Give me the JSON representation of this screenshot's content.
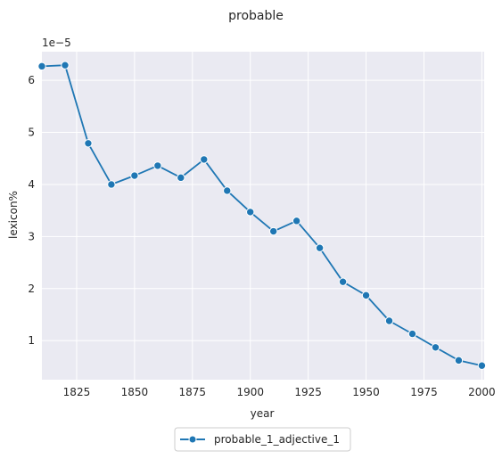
{
  "chart_data": {
    "type": "line",
    "title": "probable",
    "xlabel": "year",
    "ylabel": "lexicon%",
    "y_offset_text": "1e−5",
    "xlim": [
      1810,
      2001
    ],
    "ylim": [
      0.25,
      6.55
    ],
    "x_ticks": [
      1825,
      1850,
      1875,
      1900,
      1925,
      1950,
      1975,
      2000
    ],
    "y_ticks": [
      1,
      2,
      3,
      4,
      5,
      6
    ],
    "grid": true,
    "legend_position": "bottom-center",
    "series": [
      {
        "name": "probable_1_adjective_1",
        "color": "#1f77b4",
        "marker": "circle",
        "x": [
          1810,
          1820,
          1830,
          1840,
          1850,
          1860,
          1870,
          1880,
          1890,
          1900,
          1910,
          1920,
          1930,
          1940,
          1950,
          1960,
          1970,
          1980,
          1990,
          2000
        ],
        "y": [
          6.27,
          6.29,
          4.79,
          4.0,
          4.17,
          4.36,
          4.13,
          4.48,
          3.88,
          3.47,
          3.1,
          3.3,
          2.78,
          2.13,
          1.87,
          1.38,
          1.13,
          0.87,
          0.62,
          0.52
        ]
      }
    ],
    "colors": {
      "plot_bg": "#eaeaf2",
      "grid": "#ffffff",
      "text": "#262626"
    }
  }
}
